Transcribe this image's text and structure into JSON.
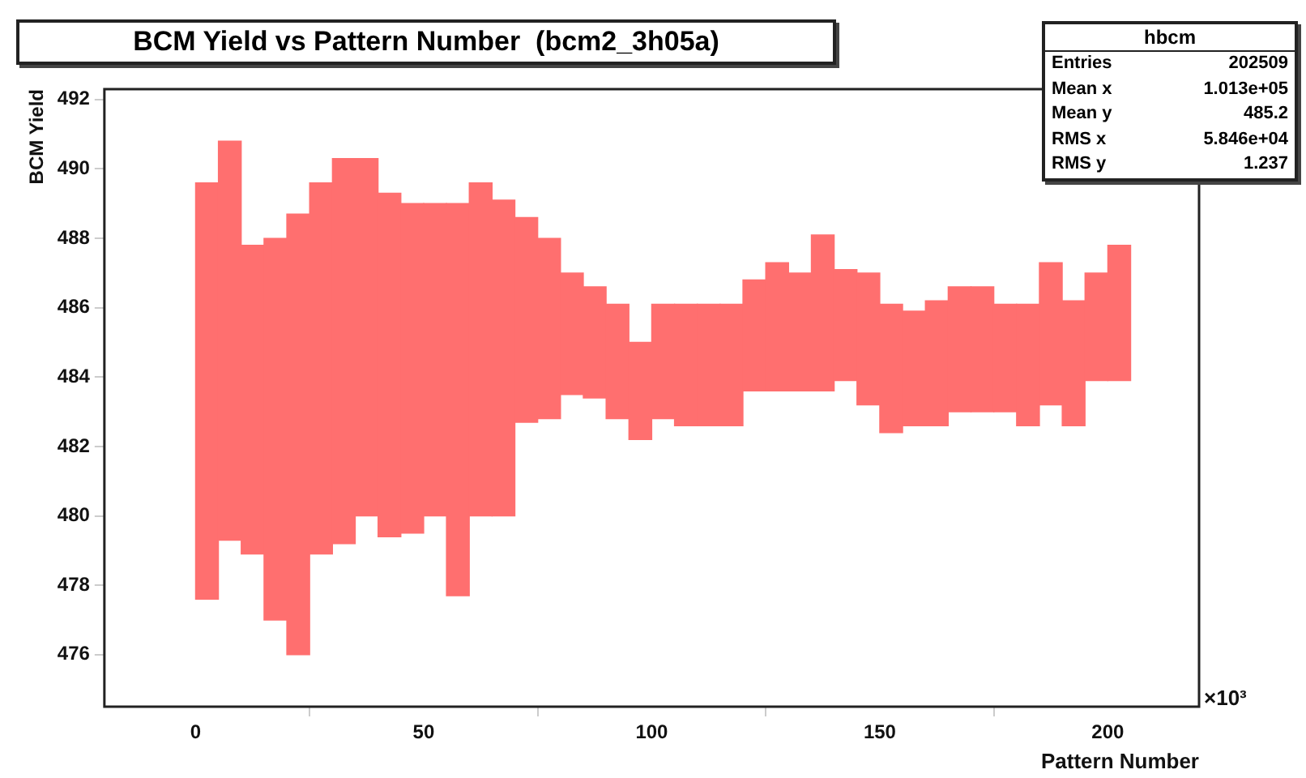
{
  "chart_data": {
    "type": "bar",
    "title": "BCM Yield vs Pattern Number  (bcm2_3h05a)",
    "xlabel": "Pattern Number",
    "ylabel": "BCM Yield",
    "x": [
      2.5,
      7.5,
      12.5,
      17.5,
      22.5,
      27.5,
      32.5,
      37.5,
      42.5,
      47.5,
      52.5,
      57.5,
      62.5,
      67.5,
      72.5,
      77.5,
      82.5,
      87.5,
      92.5,
      97.5,
      102.5,
      107.5,
      112.5,
      117.5,
      122.5,
      127.5,
      132.5,
      137.5,
      142.5,
      147.5,
      152.5,
      157.5,
      162.5,
      167.5,
      172.5,
      177.5,
      182.5,
      187.5,
      192.5,
      197.5,
      202.5
    ],
    "base": [
      477.6,
      479.3,
      478.9,
      477.0,
      476.0,
      478.9,
      479.2,
      480.0,
      479.4,
      479.5,
      480.0,
      477.7,
      480.0,
      480.0,
      482.7,
      482.8,
      483.5,
      483.4,
      482.8,
      482.2,
      482.8,
      482.6,
      482.6,
      482.6,
      483.6,
      483.6,
      483.6,
      483.6,
      483.9,
      483.2,
      482.4,
      482.6,
      482.6,
      483.0,
      483.0,
      483.0,
      482.6,
      483.2,
      482.6,
      483.9,
      483.9
    ],
    "values": [
      12.0,
      11.5,
      8.9,
      11.0,
      12.7,
      10.7,
      11.1,
      10.3,
      9.9,
      9.5,
      9.0,
      11.3,
      9.6,
      9.1,
      5.9,
      5.2,
      3.5,
      3.2,
      3.3,
      2.8,
      3.3,
      3.5,
      3.5,
      3.5,
      3.2,
      3.7,
      3.4,
      4.5,
      3.2,
      3.8,
      3.7,
      3.3,
      3.6,
      3.6,
      3.6,
      3.1,
      3.5,
      4.1,
      3.6,
      3.1,
      3.9
    ],
    "color": "#ff6f6f",
    "xlim": [
      -20,
      220
    ],
    "xticks": [
      0,
      50,
      100,
      150,
      200
    ],
    "ylim": [
      474.5,
      492.3
    ],
    "yticks": [
      476,
      478,
      480,
      482,
      484,
      486,
      488,
      490,
      492
    ],
    "grid": false,
    "legend": false,
    "annotations": [
      "×10³",
      "hbcm",
      "Entries",
      "202509",
      "Mean x",
      "1.013e+05",
      "Mean y",
      "485.2",
      "RMS x",
      "5.846e+04",
      "RMS y",
      "1.237"
    ]
  }
}
